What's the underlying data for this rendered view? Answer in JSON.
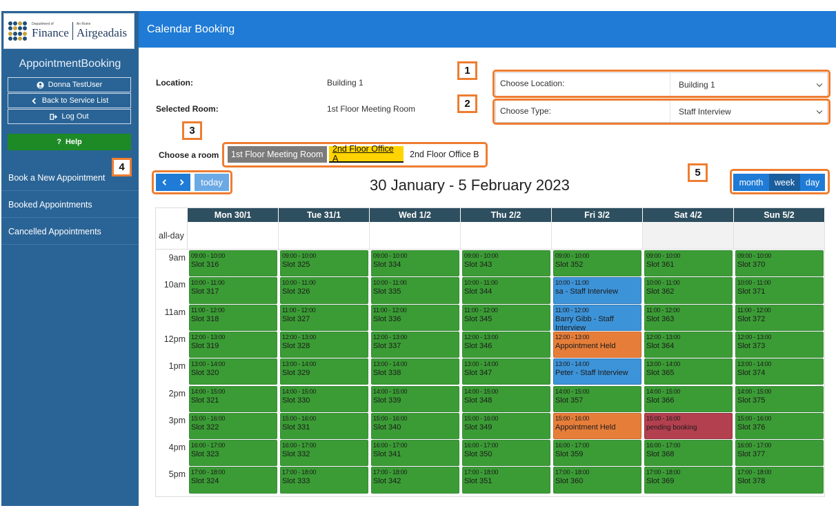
{
  "sidebar": {
    "logo": {
      "dept_small": "Department of",
      "dept_name": "Finance",
      "irish_small": "An Roinn",
      "irish_name": "Airgeadais"
    },
    "app_title": "AppointmentBooking",
    "user_button": "Donna TestUser",
    "back_button": "Back to Service List",
    "logout_button": "Log Out",
    "help_button": "Help",
    "nav_items": [
      "Book a New Appointment",
      "Booked Appointments",
      "Cancelled Appointments"
    ]
  },
  "topbar": {
    "title": "Calendar Booking"
  },
  "info": {
    "location_label": "Location:",
    "location_value": "Building 1",
    "room_label": "Selected Room:",
    "room_value": "1st Floor Meeting Room"
  },
  "choose_location": {
    "caption": "Choose Location:",
    "value": "Building 1"
  },
  "choose_type": {
    "caption": "Choose Type:",
    "value": "Staff Interview"
  },
  "rooms": {
    "label": "Choose a room",
    "items": [
      "1st Floor Meeting Room",
      "2nd Floor Office A",
      "2nd Floor Office B"
    ]
  },
  "nav": {
    "prev": "‹",
    "next": "›",
    "today": "today"
  },
  "views": {
    "month": "month",
    "week": "week",
    "day": "day"
  },
  "range_title": "30 January - 5 February 2023",
  "calendar": {
    "allday_label": "all-day",
    "days": [
      "Mon 30/1",
      "Tue 31/1",
      "Wed 1/2",
      "Thu 2/2",
      "Fri 3/2",
      "Sat 4/2",
      "Sun 5/2"
    ],
    "hours": [
      "9am",
      "10am",
      "11am",
      "12pm",
      "1pm",
      "2pm",
      "3pm",
      "4pm",
      "5pm"
    ],
    "slot_times": [
      "09:00 - 10:00",
      "10:00 - 11:00",
      "11:00 - 12:00",
      "12:00 - 13:00",
      "13:00 - 14:00",
      "14:00 - 15:00",
      "15:00 - 16:00",
      "16:00 - 17:00",
      "17:00 - 18:00"
    ],
    "events": [
      [
        "Slot 316",
        "Slot 317",
        "Slot 318",
        "Slot 319",
        "Slot 320",
        "Slot 321",
        "Slot 322",
        "Slot 323",
        "Slot 324"
      ],
      [
        "Slot 325",
        "Slot 326",
        "Slot 327",
        "Slot 328",
        "Slot 329",
        "Slot 330",
        "Slot 331",
        "Slot 332",
        "Slot 333"
      ],
      [
        "Slot 334",
        "Slot 335",
        "Slot 336",
        "Slot 337",
        "Slot 338",
        "Slot 339",
        "Slot 340",
        "Slot 341",
        "Slot 342"
      ],
      [
        "Slot 343",
        "Slot 344",
        "Slot 345",
        "Slot 346",
        "Slot 347",
        "Slot 348",
        "Slot 349",
        "Slot 350",
        "Slot 351"
      ],
      [
        "Slot 352",
        "sa - Staff Interview",
        "Barry Gibb - Staff Interview",
        "Appointment Held",
        "Peter - Staff Interview",
        "Slot 357",
        "Appointment Held",
        "Slot 359",
        "Slot 360"
      ],
      [
        "Slot 361",
        "Slot 362",
        "Slot 363",
        "Slot 364",
        "Slot 365",
        "Slot 366",
        "pending booking",
        "Slot 368",
        "Slot 369"
      ],
      [
        "Slot 370",
        "Slot 371",
        "Slot 372",
        "Slot 373",
        "Slot 374",
        "Slot 375",
        "Slot 376",
        "Slot 377",
        "Slot 378"
      ]
    ],
    "event_colors": [
      [
        "green",
        "green",
        "green",
        "green",
        "green",
        "green",
        "green",
        "green",
        "green"
      ],
      [
        "green",
        "green",
        "green",
        "green",
        "green",
        "green",
        "green",
        "green",
        "green"
      ],
      [
        "green",
        "green",
        "green",
        "green",
        "green",
        "green",
        "green",
        "green",
        "green"
      ],
      [
        "green",
        "green",
        "green",
        "green",
        "green",
        "green",
        "green",
        "green",
        "green"
      ],
      [
        "green",
        "blue",
        "blue",
        "orange",
        "blue",
        "green",
        "orange",
        "green",
        "green"
      ],
      [
        "green",
        "green",
        "green",
        "green",
        "green",
        "green",
        "red",
        "green",
        "green"
      ],
      [
        "green",
        "green",
        "green",
        "green",
        "green",
        "green",
        "green",
        "green",
        "green"
      ]
    ]
  },
  "callouts": [
    "1",
    "2",
    "3",
    "4",
    "5"
  ],
  "colors": {
    "sidebar": "#2a6496",
    "topbar": "#1f7bd6",
    "callout": "#ee7d31",
    "slot_available": "#3b9c35",
    "slot_booked": "#3d93d8",
    "slot_held": "#e67e3a",
    "slot_pending": "#b3404f",
    "room_selected": "#ffd400"
  }
}
